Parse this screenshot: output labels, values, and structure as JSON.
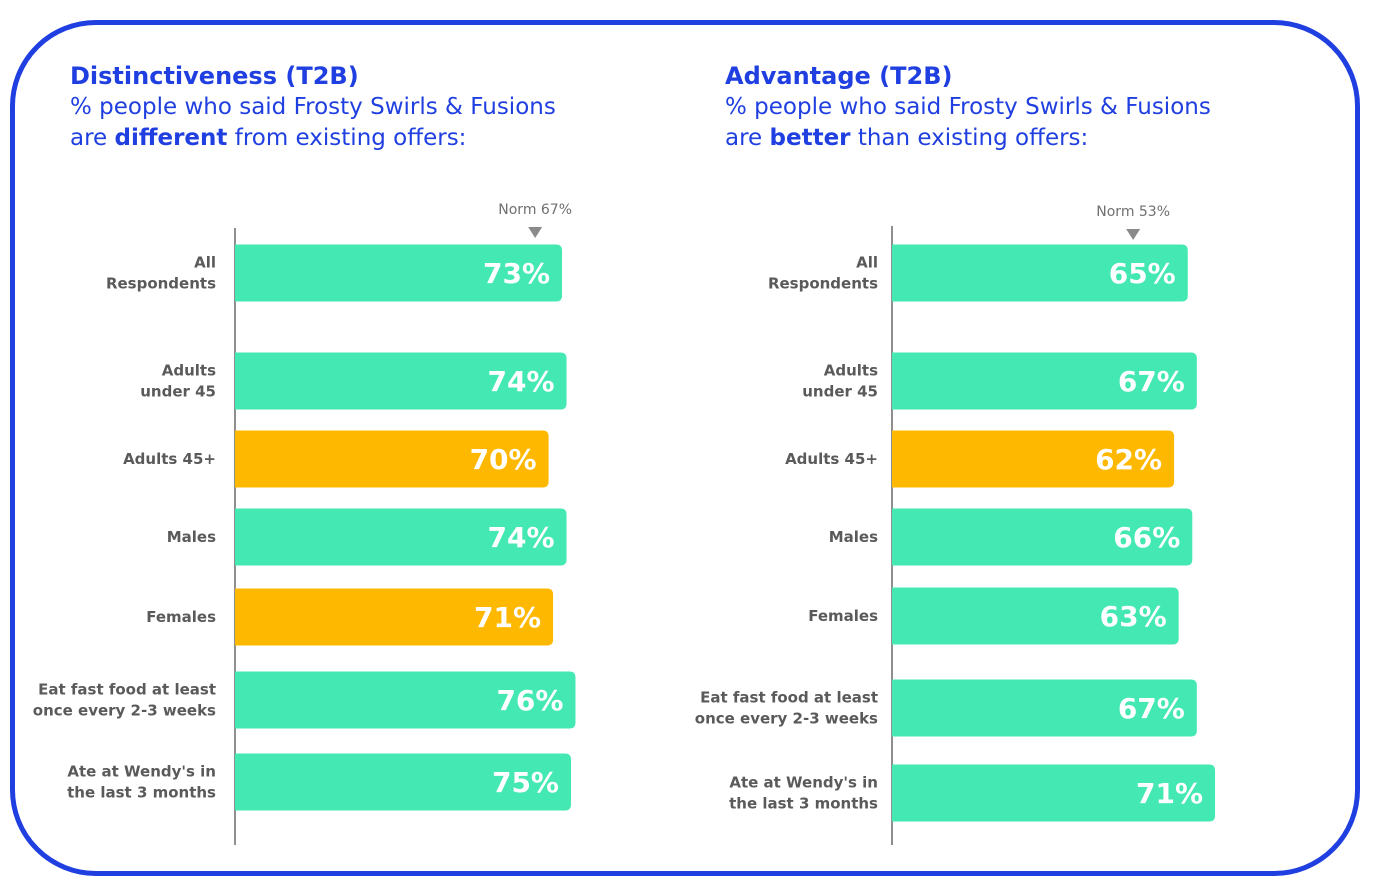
{
  "colors": {
    "accent": "#1f3fe0",
    "bar_default": "#44e8b2",
    "bar_highlight": "#ffb800",
    "axis": "#6a6a6a",
    "label": "#5a5a5a"
  },
  "chart_data": [
    {
      "type": "bar",
      "orientation": "horizontal",
      "title": "Distinctiveness (T2B)",
      "subtitle_pre": "% people who said Frosty Swirls & Fusions",
      "subtitle_line2_pre": "are ",
      "subtitle_emph": "different",
      "subtitle_post": " from existing offers:",
      "norm_label": "Norm 67%",
      "norm_value": 67,
      "categories": [
        [
          "All",
          "Respondents"
        ],
        [
          "Adults",
          "under 45"
        ],
        [
          "Adults 45+"
        ],
        [
          "Males"
        ],
        [
          "Females"
        ],
        [
          "Eat fast food at least",
          "once every 2-3 weeks"
        ],
        [
          "Ate at Wendy's in",
          "the last 3 months"
        ]
      ],
      "values": [
        73,
        74,
        70,
        74,
        71,
        76,
        75
      ],
      "value_labels": [
        "73%",
        "74%",
        "70%",
        "74%",
        "71%",
        "76%",
        "75%"
      ],
      "highlight": [
        false,
        false,
        true,
        false,
        true,
        false,
        false
      ]
    },
    {
      "type": "bar",
      "orientation": "horizontal",
      "title": "Advantage (T2B)",
      "subtitle_pre": "% people who said Frosty Swirls & Fusions",
      "subtitle_line2_pre": "are ",
      "subtitle_emph": "better",
      "subtitle_post": " than existing offers:",
      "norm_label": "Norm 53%",
      "norm_value": 53,
      "categories": [
        [
          "All",
          "Respondents"
        ],
        [
          "Adults",
          "under 45"
        ],
        [
          "Adults 45+"
        ],
        [
          "Males"
        ],
        [
          "Females"
        ],
        [
          "Eat fast food at least",
          "once every 2-3 weeks"
        ],
        [
          "Ate at Wendy's in",
          "the last 3 months"
        ]
      ],
      "values": [
        65,
        67,
        62,
        66,
        63,
        67,
        71
      ],
      "value_labels": [
        "65%",
        "67%",
        "62%",
        "66%",
        "63%",
        "67%",
        "71%"
      ],
      "highlight": [
        false,
        false,
        true,
        false,
        false,
        false,
        false
      ]
    }
  ]
}
